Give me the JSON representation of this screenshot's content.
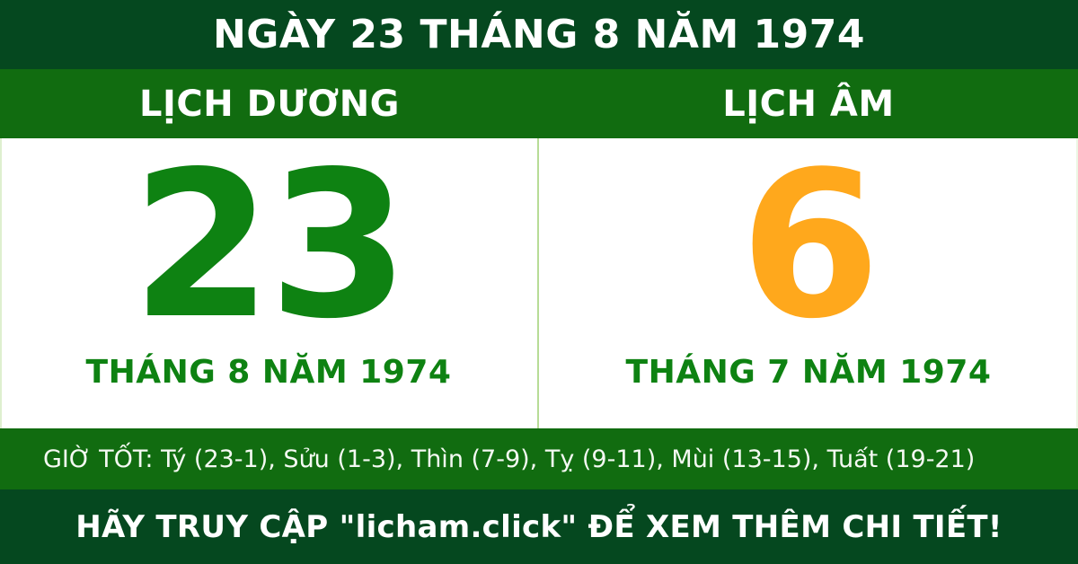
{
  "header": {
    "title": "NGÀY 23 THÁNG 8 NĂM 1974"
  },
  "calendars": {
    "solar": {
      "label": "LỊCH DƯƠNG",
      "day": "23",
      "month_year": "THÁNG 8 NĂM 1974"
    },
    "lunar": {
      "label": "LỊCH ÂM",
      "day": "6",
      "month_year": "THÁNG 7 NĂM 1974"
    }
  },
  "good_hours": {
    "text": "GIỜ TỐT: Tý (23-1), Sửu (1-3), Thìn (7-9), Tỵ (9-11), Mùi (13-15), Tuất (19-21)"
  },
  "footer": {
    "text": "HÃY TRUY CẬP \"licham.click\" ĐỂ XEM THÊM CHI TIẾT!"
  },
  "colors": {
    "dark_green": "#05481F",
    "medium_green": "#116C10",
    "bright_green": "#0E8212",
    "orange": "#FFA81C",
    "divider_green": "#B7DC96",
    "white": "#FFFFFF"
  }
}
